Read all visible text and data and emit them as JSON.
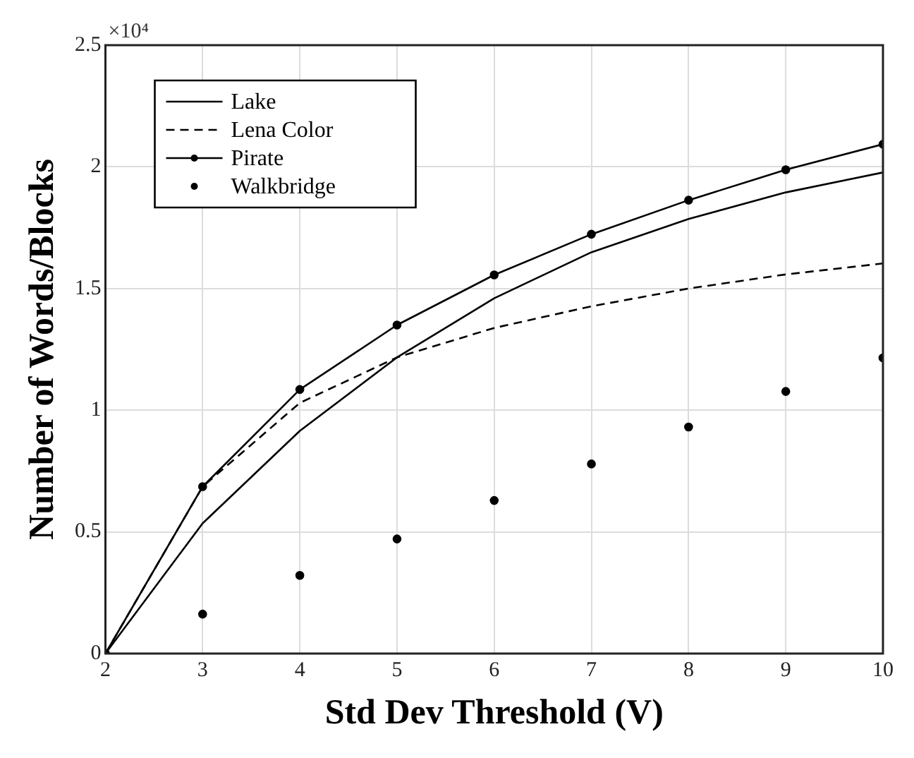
{
  "chart_data": {
    "type": "line",
    "xlabel": "Std Dev Threshold (V)",
    "ylabel": "Number of Words/Blocks",
    "x": [
      2,
      3,
      4,
      5,
      6,
      7,
      8,
      9,
      10
    ],
    "series": [
      {
        "name": "Lake",
        "color": "#000000",
        "line_style": "solid",
        "marker": "none",
        "values": [
          0,
          0.535,
          0.915,
          1.217,
          1.46,
          1.649,
          1.786,
          1.895,
          1.977
        ]
      },
      {
        "name": "Lena Color",
        "color": "#000000",
        "line_style": "dashed",
        "marker": "none",
        "values": [
          0,
          0.686,
          1.03,
          1.217,
          1.338,
          1.427,
          1.5,
          1.558,
          1.603
        ]
      },
      {
        "name": "Pirate",
        "color": "#000000",
        "line_style": "solid",
        "marker": "circle",
        "values": [
          0,
          0.686,
          1.085,
          1.35,
          1.556,
          1.723,
          1.863,
          1.988,
          2.093
        ]
      },
      {
        "name": "Walkbridge",
        "type": "scatter",
        "color": "#000000",
        "marker": "circle",
        "values": [
          null,
          0.162,
          0.321,
          0.471,
          0.629,
          0.779,
          0.931,
          1.077,
          1.215
        ]
      }
    ],
    "xlim": [
      2,
      10
    ],
    "xticks": [
      2,
      3,
      4,
      5,
      6,
      7,
      8,
      9,
      10
    ],
    "ylim": [
      0,
      2.5
    ],
    "yticks": [
      0,
      0.5,
      1,
      1.5,
      2,
      2.5
    ],
    "annotations": [
      "×10⁴"
    ],
    "grid": true,
    "legend": "top left"
  }
}
